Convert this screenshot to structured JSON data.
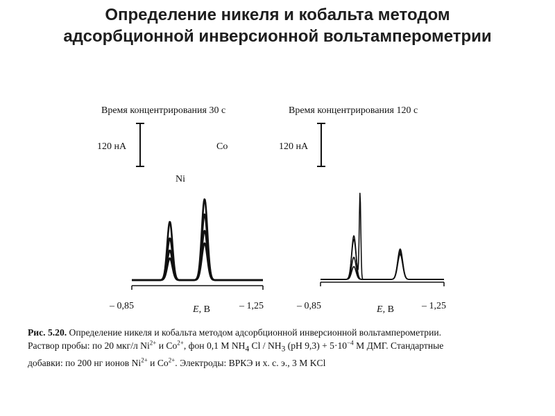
{
  "slide": {
    "title_line1": "Определение никеля и кобальта методом",
    "title_line2": "адсорбционной инверсионной вольтамперометрии"
  },
  "caption": {
    "fig_label": "Рис. 5.20.",
    "line1_rest": " Определение никеля и кобальта методом адсорбционной инверсионной вольтамперометрии.",
    "line2_a": "Раствор пробы: по 20 мкг/л  Ni",
    "ni_charge": "2+",
    "line2_b": " и  Co",
    "co_charge": "2+",
    "line2_c": ", фон 0,1 М NH",
    "nh4_sub": "4",
    "line2_d": " Cl / NH",
    "nh3_sub": "3",
    "line2_e": " (pH 9,3) + 5·10",
    "exp": "−4",
    "line2_f": " М ДМГ. Стандартные",
    "line3_a": "добавки: по 200 нг ионов Ni",
    "ni_charge2": "2+",
    "line3_b": " и Co",
    "co_charge2": "2+",
    "line3_c": ". Электроды: ВРКЭ и х. с. э., 3 М KCl"
  },
  "chart_data": [
    {
      "type": "line",
      "title": "Время концентрирования 30 с",
      "xlabel_var": "E",
      "xlabel_unit": ", В",
      "xlim": [
        -0.85,
        -1.25
      ],
      "xtick_left": "– 0,85",
      "xtick_right": "– 1,25",
      "scale_bar_label": "120 нА",
      "scale_bar_value": 120,
      "scale_bar_unit": "нА",
      "baseline_nA": 0,
      "peaks": [
        {
          "label": "Ni",
          "E": -0.966,
          "heights_nA": [
            61,
            83,
            117,
            163
          ],
          "width": 0.008
        },
        {
          "label": "Co",
          "E": -1.072,
          "heights_nA": [
            103,
            138,
            184,
            226
          ],
          "width": 0.0085
        }
      ],
      "series_count": 4
    },
    {
      "type": "line",
      "title": "Время концентрирования 120 с",
      "xlabel_var": "E",
      "xlabel_unit": ", В",
      "xlim": [
        -0.85,
        -1.25
      ],
      "xtick_left": "– 0,85",
      "xtick_right": "– 1,25",
      "scale_bar_label": "120 нА",
      "scale_bar_value": 120,
      "scale_bar_unit": "нА",
      "baseline_nA": 0,
      "peaks": [
        {
          "label": "",
          "E": -0.958,
          "heights_nA": [
            36,
            62,
            112,
            122
          ],
          "width": 0.007
        },
        {
          "label": "",
          "E": -0.978,
          "heights_nA": [
            0,
            0,
            0,
            240
          ],
          "width": 0.0025
        },
        {
          "label": "",
          "E": -1.108,
          "heights_nA": [
            70,
            75,
            80,
            85
          ],
          "width": 0.008
        }
      ],
      "series_count": 4
    }
  ]
}
